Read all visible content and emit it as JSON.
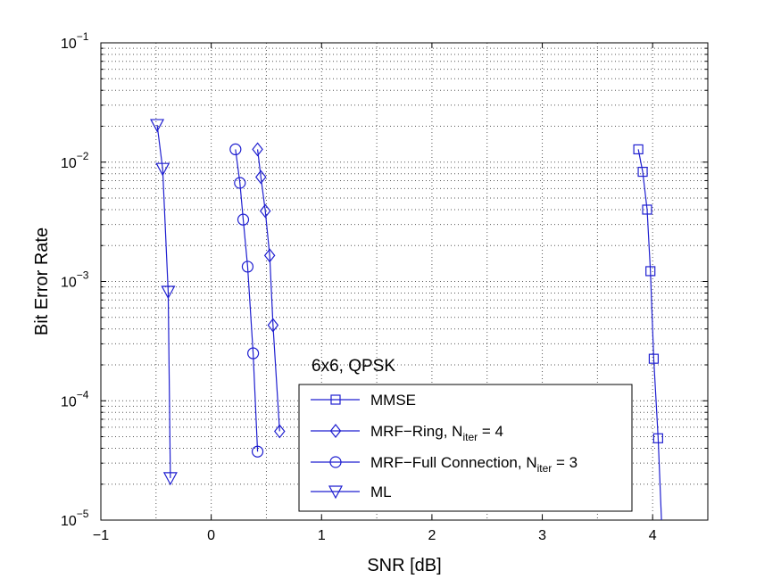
{
  "chart_data": {
    "type": "line",
    "title": "",
    "xlabel": "SNR [dB]",
    "ylabel": "Bit Error Rate",
    "xlim": [
      -1,
      4.5
    ],
    "ylim": [
      1e-05,
      0.1
    ],
    "yscale": "log",
    "grid": true,
    "x_ticks": [
      -1,
      0,
      1,
      2,
      3,
      4
    ],
    "x_tick_labels": [
      "−1",
      "0",
      "1",
      "2",
      "3",
      "4"
    ],
    "y_ticks": [
      {
        "value": 0.1,
        "base": "10",
        "exp": "−1"
      },
      {
        "value": 0.01,
        "base": "10",
        "exp": "−2"
      },
      {
        "value": 0.001,
        "base": "10",
        "exp": "−3"
      },
      {
        "value": 0.0001,
        "base": "10",
        "exp": "−4"
      },
      {
        "value": 1e-05,
        "base": "10",
        "exp": "−5"
      }
    ],
    "annotation": "6x6, QPSK",
    "legend_placement": "bottom-center",
    "line_color": "#1f1fd0",
    "series": [
      {
        "name": "MMSE",
        "legend_parts": [
          {
            "t": "MMSE"
          }
        ],
        "marker": "square",
        "x": [
          3.87,
          3.91,
          3.95,
          3.98,
          4.01,
          4.05,
          4.09
        ],
        "y": [
          0.0128,
          0.0083,
          0.004,
          0.00122,
          0.000225,
          4.85e-05,
          6e-06
        ]
      },
      {
        "name": "MRF-Ring, N_iter = 4",
        "legend_parts": [
          {
            "t": "MRF−Ring, N"
          },
          {
            "t": "iter",
            "sub": true
          },
          {
            "t": " = 4"
          }
        ],
        "marker": "diamond",
        "x": [
          0.42,
          0.45,
          0.49,
          0.53,
          0.56,
          0.62
        ],
        "y": [
          0.0128,
          0.0075,
          0.0039,
          0.00165,
          0.00043,
          5.55e-05
        ]
      },
      {
        "name": "MRF-Full Connection, N_iter = 3",
        "legend_parts": [
          {
            "t": "MRF−Full Connection, N"
          },
          {
            "t": "iter",
            "sub": true
          },
          {
            "t": " = 3"
          }
        ],
        "marker": "circle",
        "x": [
          0.22,
          0.26,
          0.29,
          0.33,
          0.38,
          0.42
        ],
        "y": [
          0.0128,
          0.0067,
          0.0033,
          0.00133,
          0.00025,
          3.75e-05
        ]
      },
      {
        "name": "ML",
        "legend_parts": [
          {
            "t": "ML"
          }
        ],
        "marker": "triangle-down",
        "x": [
          -0.49,
          -0.44,
          -0.39,
          -0.37
        ],
        "y": [
          0.0205,
          0.0088,
          0.00082,
          2.25e-05
        ]
      }
    ]
  }
}
